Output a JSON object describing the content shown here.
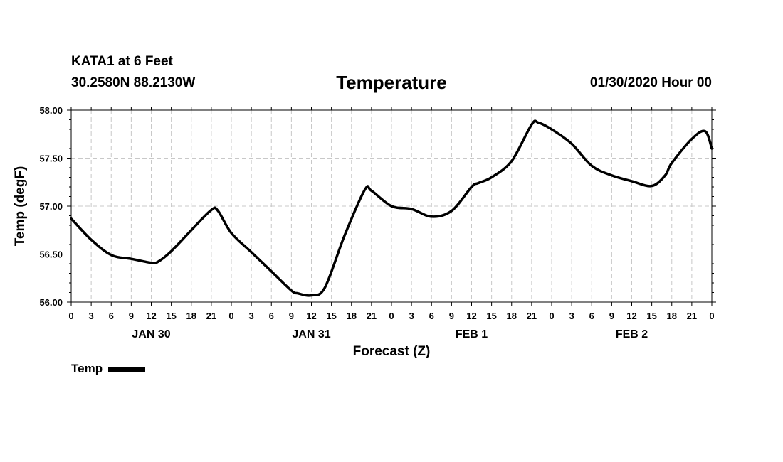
{
  "header": {
    "station": "KATA1 at 6 Feet",
    "coords": "30.2580N 88.2130W",
    "title": "Temperature",
    "issued": "01/30/2020 Hour 00"
  },
  "legend": {
    "label": "Temp"
  },
  "chart_data": {
    "type": "line",
    "title": "Temperature",
    "xlabel": "Forecast (Z)",
    "ylabel": "Temp (degF)",
    "ylim": [
      56.0,
      58.0
    ],
    "yticks": [
      "56.00",
      "56.50",
      "57.00",
      "57.50",
      "58.00"
    ],
    "xlim": [
      0,
      96
    ],
    "x_tick_labels": [
      "0",
      "3",
      "6",
      "9",
      "12",
      "15",
      "18",
      "21",
      "0",
      "3",
      "6",
      "9",
      "12",
      "15",
      "18",
      "21",
      "0",
      "3",
      "6",
      "9",
      "12",
      "15",
      "18",
      "21",
      "0",
      "3",
      "6",
      "9",
      "12",
      "15",
      "18",
      "21",
      "0"
    ],
    "day_labels": [
      {
        "label": "JAN 30",
        "hour": 12
      },
      {
        "label": "JAN 31",
        "hour": 36
      },
      {
        "label": "FEB 1",
        "hour": 60
      },
      {
        "label": "FEB 2",
        "hour": 84
      }
    ],
    "grid": true,
    "legend_position": "bottom-left",
    "series": [
      {
        "name": "Temp",
        "color": "#000000",
        "x": [
          0,
          3,
          6,
          9,
          12,
          13,
          15,
          18,
          21,
          22,
          24,
          27,
          30,
          33,
          34,
          36,
          38,
          41,
          44,
          45,
          48,
          51,
          54,
          57,
          60,
          61,
          63,
          66,
          69,
          70,
          72,
          75,
          78,
          81,
          84,
          87,
          89,
          90,
          93,
          95,
          96
        ],
        "y": [
          56.87,
          56.65,
          56.49,
          56.45,
          56.41,
          56.42,
          56.53,
          56.75,
          56.96,
          56.95,
          56.72,
          56.52,
          56.32,
          56.12,
          56.09,
          56.07,
          56.15,
          56.7,
          57.17,
          57.16,
          57.0,
          56.97,
          56.89,
          56.95,
          57.2,
          57.24,
          57.3,
          57.47,
          57.85,
          57.87,
          57.8,
          57.65,
          57.42,
          57.32,
          57.26,
          57.21,
          57.32,
          57.45,
          57.7,
          57.78,
          57.6
        ]
      }
    ]
  }
}
